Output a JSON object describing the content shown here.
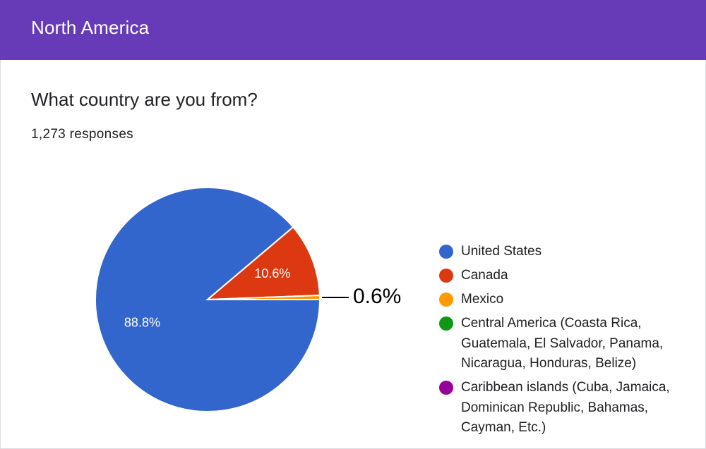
{
  "header": {
    "title": "North America"
  },
  "question": {
    "title": "What country are you from?",
    "responses": "1,273 responses"
  },
  "chart_data": {
    "type": "pie",
    "categories": [
      "United States",
      "Canada",
      "Mexico",
      "Central America (Coasta Rica, Guatemala, El Salvador, Panama, Nicaragua, Honduras, Belize)",
      "Caribbean islands (Cuba, Jamaica, Dominican Republic, Bahamas, Cayman, Etc.)"
    ],
    "values": [
      88.8,
      10.6,
      0.6,
      0,
      0
    ],
    "labels": [
      "88.8%",
      "10.6%",
      "0.6%",
      "",
      ""
    ],
    "colors": [
      "#3366cc",
      "#dc3912",
      "#ff9900",
      "#109618",
      "#990099"
    ],
    "legend_position": "right",
    "title": "",
    "xlabel": "",
    "ylabel": ""
  }
}
